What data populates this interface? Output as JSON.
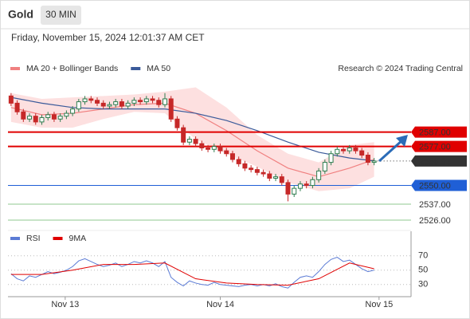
{
  "header": {
    "symbol": "Gold",
    "interval": "30 MIN",
    "timestamp": "Friday, November 15, 2024 12:01:37 AM CET"
  },
  "chart_data": [
    {
      "type": "candlestick",
      "credit": "Research © 2024 Trading Central",
      "up_color": "#2e7d4f",
      "down_color": "#c62828",
      "xlim": [
        -0.5,
        65
      ],
      "ylim": [
        2521,
        2626
      ],
      "open": [
        2612,
        2607,
        2601,
        2596,
        2598,
        2594,
        2597,
        2599,
        2596,
        2598,
        2600,
        2603,
        2608,
        2610,
        2609,
        2607,
        2605,
        2606,
        2608,
        2605,
        2607,
        2609,
        2608,
        2610,
        2609,
        2606,
        2610,
        2596,
        2590,
        2580,
        2582,
        2579,
        2576,
        2575,
        2577,
        2574,
        2572,
        2568,
        2565,
        2562,
        2561,
        2559,
        2558,
        2555,
        2556,
        2552,
        2544,
        2548,
        2551,
        2550,
        2554,
        2560,
        2566,
        2572,
        2575,
        2574,
        2576,
        2574,
        2571,
        2566
      ],
      "high": [
        2614,
        2609,
        2603,
        2600,
        2600,
        2599,
        2601,
        2601,
        2600,
        2602,
        2605,
        2610,
        2612,
        2612,
        2611,
        2609,
        2608,
        2610,
        2610,
        2609,
        2611,
        2611,
        2612,
        2612,
        2611,
        2614,
        2612,
        2598,
        2592,
        2584,
        2584,
        2581,
        2578,
        2579,
        2579,
        2576,
        2574,
        2570,
        2567,
        2564,
        2563,
        2561,
        2560,
        2558,
        2558,
        2554,
        2550,
        2553,
        2553,
        2556,
        2562,
        2568,
        2574,
        2577,
        2577,
        2578,
        2578,
        2576,
        2573,
        2569
      ],
      "low": [
        2605,
        2599,
        2594,
        2594,
        2592,
        2592,
        2595,
        2594,
        2594,
        2596,
        2598,
        2601,
        2606,
        2607,
        2605,
        2603,
        2603,
        2604,
        2603,
        2603,
        2605,
        2606,
        2606,
        2607,
        2604,
        2604,
        2594,
        2588,
        2578,
        2578,
        2577,
        2574,
        2573,
        2573,
        2572,
        2570,
        2566,
        2563,
        2560,
        2559,
        2557,
        2556,
        2553,
        2553,
        2550,
        2539,
        2542,
        2546,
        2548,
        2548,
        2552,
        2558,
        2564,
        2570,
        2572,
        2572,
        2572,
        2569,
        2564,
        2564
      ],
      "close": [
        2607,
        2601,
        2596,
        2598,
        2594,
        2597,
        2599,
        2596,
        2598,
        2600,
        2603,
        2608,
        2610,
        2609,
        2607,
        2605,
        2606,
        2608,
        2605,
        2607,
        2609,
        2608,
        2610,
        2609,
        2606,
        2610,
        2596,
        2590,
        2580,
        2582,
        2579,
        2576,
        2575,
        2577,
        2574,
        2572,
        2568,
        2565,
        2562,
        2561,
        2559,
        2558,
        2555,
        2556,
        2552,
        2544,
        2548,
        2551,
        2550,
        2554,
        2560,
        2566,
        2572,
        2575,
        2574,
        2576,
        2574,
        2571,
        2566,
        2566.93
      ],
      "series": [
        {
          "name": "MA 20 + Bollinger Bands",
          "color": "#f08080",
          "band_color": "#fde0e0",
          "x": [
            0,
            5,
            10,
            15,
            20,
            25,
            30,
            35,
            40,
            45,
            50,
            55,
            59
          ],
          "values": [
            2604,
            2599,
            2600,
            2603,
            2606,
            2607,
            2600,
            2588,
            2574,
            2562,
            2556,
            2562,
            2568
          ],
          "upper": [
            2614,
            2610,
            2611,
            2612,
            2613,
            2615,
            2618,
            2604,
            2585,
            2572,
            2566,
            2578,
            2580
          ],
          "lower": [
            2594,
            2590,
            2590,
            2596,
            2601,
            2600,
            2582,
            2572,
            2563,
            2552,
            2546,
            2548,
            2556
          ]
        },
        {
          "name": "MA 50",
          "color": "#3a5a9a",
          "x": [
            0,
            5,
            10,
            15,
            20,
            25,
            30,
            35,
            40,
            45,
            50,
            55,
            59
          ],
          "values": [
            2611,
            2607,
            2604,
            2603,
            2603,
            2603,
            2600,
            2595,
            2588,
            2580,
            2573,
            2569,
            2567
          ]
        }
      ],
      "levels": [
        {
          "value": 2587,
          "label": "2587.00",
          "color": "#e00000",
          "boxed": true
        },
        {
          "value": 2577,
          "label": "2577.00",
          "color": "#e00000",
          "boxed": true
        },
        {
          "value": 2566.93,
          "color": "#333333",
          "boxed": true,
          "dotted": true
        },
        {
          "value": 2550,
          "label": "2550.00",
          "color": "#1f5fd6",
          "boxed": true
        },
        {
          "value": 2537,
          "label": "2537.00",
          "color": "#8fc98f",
          "boxed": false
        },
        {
          "value": 2526,
          "label": "2526.00",
          "color": "#8fc98f",
          "boxed": false
        }
      ]
    },
    {
      "type": "line",
      "xlim": [
        -0.5,
        65
      ],
      "ylim": [
        13,
        82
      ],
      "yticks": [
        70,
        50,
        30
      ],
      "xticks": [
        {
          "value": 8.8,
          "label": "Nov 13"
        },
        {
          "value": 34,
          "label": "Nov 14"
        },
        {
          "value": 59.8,
          "label": "Nov 15"
        }
      ],
      "series": [
        {
          "name": "RSI",
          "color": "#5b7bd5",
          "values": [
            45,
            38,
            35,
            42,
            40,
            44,
            48,
            45,
            47,
            50,
            55,
            63,
            66,
            62,
            58,
            55,
            57,
            60,
            55,
            58,
            62,
            60,
            63,
            60,
            55,
            62,
            40,
            33,
            28,
            35,
            32,
            30,
            29,
            33,
            30,
            29,
            28,
            27,
            29,
            30,
            28,
            30,
            28,
            31,
            27,
            25,
            33,
            40,
            42,
            40,
            48,
            58,
            65,
            68,
            62,
            64,
            58,
            52,
            48,
            50
          ]
        },
        {
          "name": "9MA",
          "color": "#e00000",
          "x": [
            0,
            5,
            10,
            15,
            20,
            25,
            30,
            35,
            40,
            45,
            50,
            55,
            59
          ],
          "values": [
            44,
            44,
            50,
            58,
            58,
            60,
            38,
            32,
            30,
            29,
            38,
            60,
            52
          ]
        }
      ]
    }
  ]
}
